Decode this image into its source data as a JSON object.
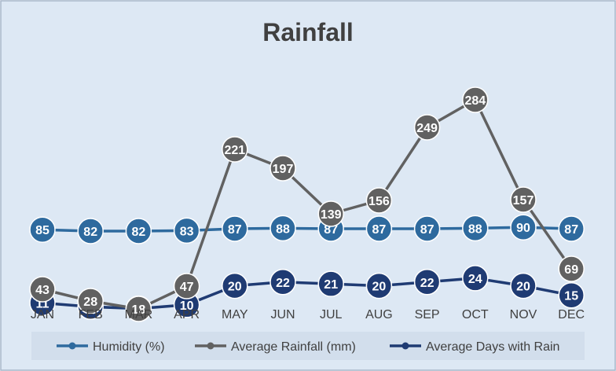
{
  "chart_data": {
    "type": "line",
    "title": "Rainfall",
    "categories": [
      "JAN",
      "FEB",
      "MAR",
      "APR",
      "MAY",
      "JUN",
      "JUL",
      "AUG",
      "SEP",
      "OCT",
      "NOV",
      "DEC"
    ],
    "series": [
      {
        "name": "Humidity (%)",
        "color": "#2e6a9e",
        "values": [
          85,
          82,
          82,
          83,
          87,
          88,
          87,
          87,
          87,
          88,
          90,
          87
        ]
      },
      {
        "name": "Average Rainfall (mm)",
        "color": "#616161",
        "values": [
          43,
          28,
          18,
          47,
          221,
          197,
          139,
          156,
          249,
          284,
          157,
          69
        ]
      },
      {
        "name": "Average Days with Rain",
        "color": "#1f3b73",
        "values": [
          11,
          9,
          8,
          10,
          20,
          22,
          21,
          20,
          22,
          24,
          20,
          15
        ]
      }
    ],
    "legend_position": "bottom",
    "gridlines": false,
    "data_labels": true,
    "colors": {
      "background": "#dde8f4",
      "border": "#a6b5c9",
      "legend_background": "#d2deec"
    }
  }
}
